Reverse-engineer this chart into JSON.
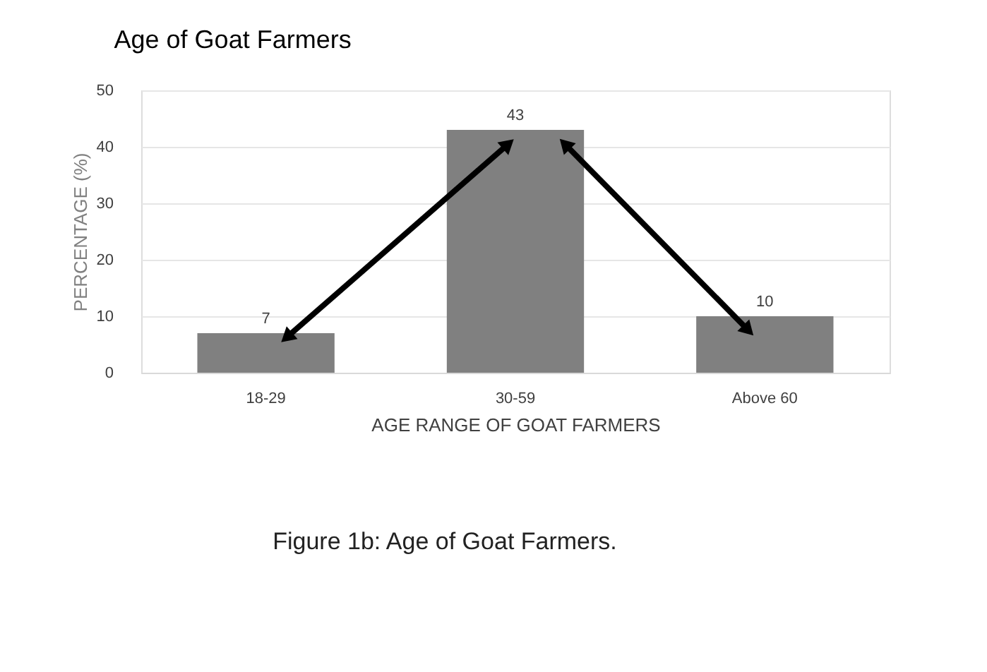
{
  "chart_data": {
    "type": "bar",
    "title": "Age of Goat Farmers",
    "xlabel": "AGE RANGE OF GOAT FARMERS",
    "ylabel": "PERCENTAGE (%)",
    "categories": [
      "18-29",
      "30-59",
      "Above 60"
    ],
    "values": [
      7,
      43,
      10
    ],
    "color": "#808080",
    "ylim": [
      0,
      50
    ],
    "yticks": [
      0,
      10,
      20,
      30,
      40,
      50
    ],
    "grid": "y",
    "data_labels": true,
    "annotations": [
      "Figure 1b: Age of Goat Farmers."
    ]
  }
}
